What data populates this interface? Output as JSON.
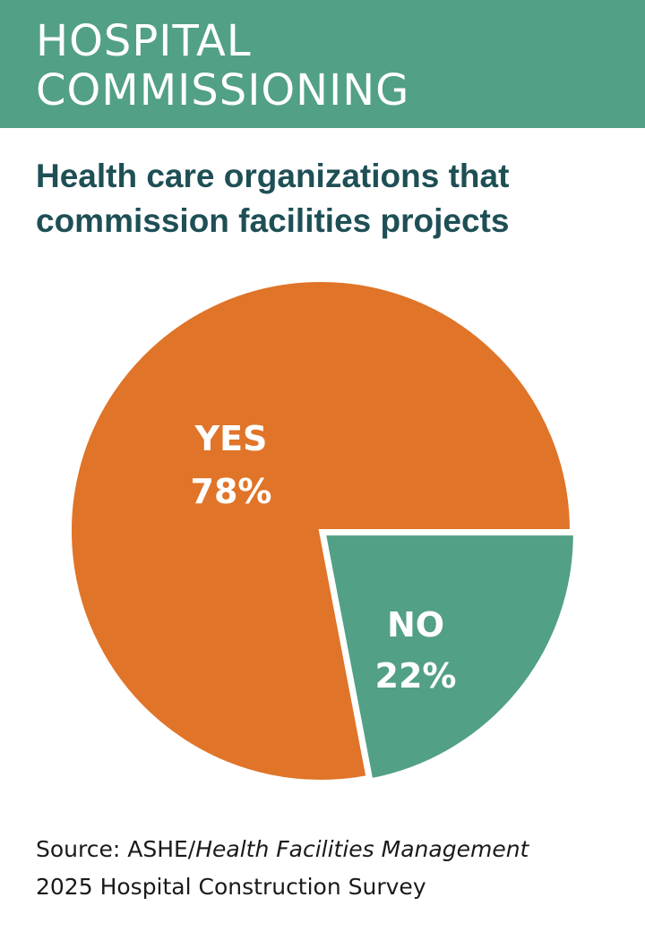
{
  "header": {
    "title_line_1": "HOSPITAL",
    "title_line_2": "COMMISSIONING"
  },
  "subtitle": "Health care organizations that commission facilities projects",
  "source": {
    "prefix": "Source: ASHE/",
    "publication": "Health Facilities Management",
    "line_2": "2025 Hospital Construction Survey"
  },
  "colors": {
    "banner": "#52a086",
    "yes": "#e07428",
    "no": "#52a086",
    "subtitle_text": "#1e4f55"
  },
  "chart_data": {
    "type": "pie",
    "categories": [
      "YES",
      "NO"
    ],
    "values": [
      78,
      22
    ],
    "value_labels": [
      "78%",
      "22%"
    ],
    "colors": [
      "#e07428",
      "#52a086"
    ],
    "title": "",
    "legend": "none"
  }
}
